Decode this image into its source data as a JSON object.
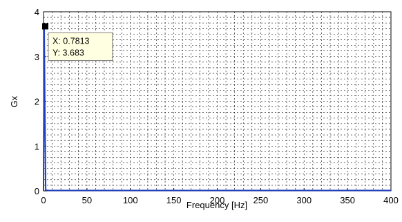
{
  "chart_data": {
    "type": "line",
    "title": "",
    "xlabel": "Frequency [Hz]",
    "ylabel": "Gx",
    "xlim": [
      0,
      400
    ],
    "ylim": [
      0,
      4
    ],
    "grid": true,
    "x_ticks": [
      "0",
      "50",
      "100",
      "150",
      "200",
      "250",
      "300",
      "350",
      "400"
    ],
    "y_ticks": [
      "0",
      "1",
      "2",
      "3",
      "4"
    ],
    "x_tick_values": [
      0,
      50,
      100,
      150,
      200,
      250,
      300,
      350,
      400
    ],
    "y_tick_values": [
      0,
      1,
      2,
      3,
      4
    ],
    "series": [
      {
        "color": "#1f3fbf",
        "x": [
          0,
          0.7813,
          1.5625,
          2.5,
          5,
          50,
          100,
          150,
          200,
          250,
          300,
          350,
          400
        ],
        "y": [
          0,
          3.683,
          1.85,
          0.02,
          0.01,
          0.01,
          0.01,
          0.01,
          0.01,
          0.01,
          0.01,
          0.01,
          0.01
        ]
      }
    ],
    "datatip": {
      "x": 0.7813,
      "y": 3.683,
      "x_text": "X: 0.7813",
      "y_text": "Y: 3.683"
    }
  }
}
